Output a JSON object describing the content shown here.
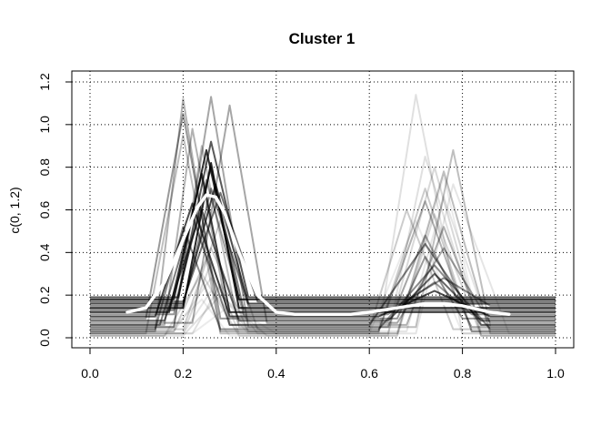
{
  "chart_data": {
    "type": "line",
    "title": "Cluster 1",
    "xlabel": "",
    "ylabel": "c(0, 1.2)",
    "xlim": [
      0,
      1
    ],
    "ylim": [
      0,
      1.2
    ],
    "x_ticks": [
      "0.0",
      "0.2",
      "0.4",
      "0.6",
      "0.8",
      "1.0"
    ],
    "y_ticks": [
      "0.0",
      "0.2",
      "0.4",
      "0.6",
      "0.8",
      "1.0",
      "1.2"
    ],
    "grid": true,
    "grid_style": "dotted",
    "curve_color": "#000000",
    "mean_color": "#ffffff",
    "series": [
      {
        "opacity": 0.85,
        "baseline": 0.14,
        "peaks": [
          [
            0.2,
            0.26,
            0.32,
            0.82
          ],
          [
            0.66,
            0.74,
            0.82,
            0.14
          ]
        ]
      },
      {
        "opacity": 0.8,
        "baseline": 0.18,
        "peaks": [
          [
            0.18,
            0.25,
            0.32,
            0.88
          ],
          [
            0.7,
            0.76,
            0.82,
            0.18
          ]
        ]
      },
      {
        "opacity": 0.75,
        "baseline": 0.12,
        "peaks": [
          [
            0.17,
            0.24,
            0.3,
            0.77
          ],
          [
            0.6,
            0.72,
            0.84,
            0.12
          ]
        ]
      },
      {
        "opacity": 0.7,
        "baseline": 0.16,
        "peaks": [
          [
            0.2,
            0.27,
            0.34,
            0.72
          ],
          [
            0.68,
            0.76,
            0.84,
            0.16
          ]
        ]
      },
      {
        "opacity": 0.7,
        "baseline": 0.1,
        "peaks": [
          [
            0.14,
            0.22,
            0.3,
            0.63
          ],
          [
            0.62,
            0.74,
            0.86,
            0.22
          ]
        ]
      },
      {
        "opacity": 0.65,
        "baseline": 0.19,
        "peaks": [
          [
            0.19,
            0.26,
            0.34,
            0.92
          ],
          [
            0.72,
            0.78,
            0.84,
            0.19
          ]
        ]
      },
      {
        "opacity": 0.6,
        "baseline": 0.08,
        "peaks": [
          [
            0.16,
            0.24,
            0.32,
            0.6
          ],
          [
            0.64,
            0.74,
            0.84,
            0.3
          ]
        ]
      },
      {
        "opacity": 0.55,
        "baseline": 0.17,
        "peaks": [
          [
            0.2,
            0.28,
            0.36,
            0.68
          ],
          [
            0.66,
            0.74,
            0.82,
            0.17
          ]
        ]
      },
      {
        "opacity": 0.5,
        "baseline": 0.06,
        "peaks": [
          [
            0.15,
            0.22,
            0.3,
            0.57
          ],
          [
            0.6,
            0.72,
            0.84,
            0.44
          ]
        ]
      },
      {
        "opacity": 0.5,
        "baseline": 0.13,
        "peaks": [
          [
            0.18,
            0.26,
            0.33,
            0.8
          ],
          [
            0.68,
            0.76,
            0.86,
            0.13
          ]
        ]
      },
      {
        "opacity": 0.45,
        "baseline": 0.04,
        "peaks": [
          [
            0.14,
            0.2,
            0.28,
            0.52
          ],
          [
            0.62,
            0.74,
            0.86,
            0.34
          ]
        ]
      },
      {
        "opacity": 0.45,
        "baseline": 0.15,
        "peaks": [
          [
            0.2,
            0.26,
            0.34,
            0.7
          ],
          [
            0.66,
            0.76,
            0.86,
            0.28
          ]
        ]
      },
      {
        "opacity": 0.4,
        "baseline": 0.11,
        "peaks": [
          [
            0.18,
            0.25,
            0.33,
            0.74
          ],
          [
            0.64,
            0.74,
            0.82,
            0.26
          ]
        ]
      },
      {
        "opacity": 0.4,
        "baseline": 0.09,
        "peaks": [
          [
            0.12,
            0.2,
            0.28,
            1.05
          ],
          [
            0.66,
            0.72,
            0.8,
            0.38
          ]
        ]
      },
      {
        "opacity": 0.35,
        "baseline": 0.05,
        "peaks": [
          [
            0.18,
            0.26,
            0.34,
            1.13
          ],
          [
            0.64,
            0.72,
            0.82,
            0.48
          ]
        ]
      },
      {
        "opacity": 0.35,
        "baseline": 0.07,
        "peaks": [
          [
            0.22,
            0.3,
            0.38,
            1.09
          ],
          [
            0.66,
            0.76,
            0.86,
            0.42
          ]
        ]
      },
      {
        "opacity": 0.3,
        "baseline": 0.03,
        "peaks": [
          [
            0.14,
            0.2,
            0.28,
            1.12
          ],
          [
            0.62,
            0.72,
            0.82,
            0.64
          ]
        ]
      },
      {
        "opacity": 0.3,
        "baseline": 0.06,
        "peaks": [
          [
            0.16,
            0.22,
            0.3,
            0.98
          ],
          [
            0.68,
            0.76,
            0.84,
            0.52
          ]
        ]
      },
      {
        "opacity": 0.25,
        "baseline": 0.02,
        "peaks": [
          [
            0.12,
            0.2,
            0.28,
            0.95
          ],
          [
            0.66,
            0.76,
            0.86,
            0.78
          ]
        ]
      },
      {
        "opacity": 0.25,
        "baseline": 0.05,
        "peaks": [
          [
            0.18,
            0.24,
            0.32,
            0.9
          ],
          [
            0.7,
            0.78,
            0.86,
            0.88
          ]
        ]
      },
      {
        "opacity": 0.2,
        "baseline": 0.04,
        "peaks": [
          [
            0.2,
            0.28,
            0.36,
            0.55
          ],
          [
            0.6,
            0.68,
            0.78,
            0.6
          ]
        ]
      },
      {
        "opacity": 0.2,
        "baseline": 0.03,
        "peaks": [
          [
            0.18,
            0.26,
            0.34,
            0.42
          ],
          [
            0.62,
            0.72,
            0.82,
            0.7
          ]
        ]
      },
      {
        "opacity": 0.15,
        "baseline": 0.02,
        "peaks": [
          [
            0.2,
            0.26,
            0.32,
            0.35
          ],
          [
            0.64,
            0.74,
            0.84,
            0.8
          ]
        ]
      },
      {
        "opacity": 0.15,
        "baseline": 0.01,
        "peaks": [
          [
            0.16,
            0.24,
            0.32,
            0.3
          ],
          [
            0.66,
            0.74,
            0.84,
            0.58
          ]
        ]
      },
      {
        "opacity": 0.12,
        "baseline": 0.02,
        "peaks": [
          [
            0.22,
            0.28,
            0.36,
            0.25
          ],
          [
            0.62,
            0.7,
            0.8,
            1.14
          ]
        ]
      },
      {
        "opacity": 0.12,
        "baseline": 0.01,
        "peaks": [
          [
            0.2,
            0.28,
            0.38,
            0.2
          ],
          [
            0.64,
            0.72,
            0.84,
            0.85
          ]
        ]
      },
      {
        "opacity": 0.1,
        "baseline": 0.03,
        "peaks": [
          [
            0.18,
            0.26,
            0.34,
            0.28
          ],
          [
            0.68,
            0.76,
            0.86,
            0.66
          ]
        ]
      },
      {
        "opacity": 0.1,
        "baseline": 0.02,
        "peaks": [
          [
            0.2,
            0.26,
            0.34,
            0.22
          ],
          [
            0.7,
            0.78,
            0.9,
            0.72
          ]
        ]
      },
      {
        "opacity": 0.08,
        "baseline": 0.01,
        "peaks": [
          [
            0.16,
            0.24,
            0.3,
            0.18
          ],
          [
            0.66,
            0.76,
            0.84,
            0.76
          ]
        ]
      },
      {
        "opacity": 0.08,
        "baseline": 0.02,
        "peaks": [
          [
            0.22,
            0.3,
            0.4,
            0.15
          ],
          [
            0.6,
            0.7,
            0.8,
            0.55
          ]
        ]
      }
    ],
    "mean_curve": {
      "x": [
        0.08,
        0.12,
        0.16,
        0.2,
        0.23,
        0.25,
        0.27,
        0.29,
        0.32,
        0.36,
        0.4,
        0.44,
        0.5,
        0.56,
        0.6,
        0.66,
        0.72,
        0.76,
        0.8,
        0.86,
        0.9
      ],
      "y": [
        0.12,
        0.14,
        0.26,
        0.46,
        0.61,
        0.67,
        0.66,
        0.58,
        0.4,
        0.2,
        0.12,
        0.11,
        0.11,
        0.11,
        0.12,
        0.14,
        0.16,
        0.16,
        0.15,
        0.12,
        0.11
      ]
    }
  }
}
